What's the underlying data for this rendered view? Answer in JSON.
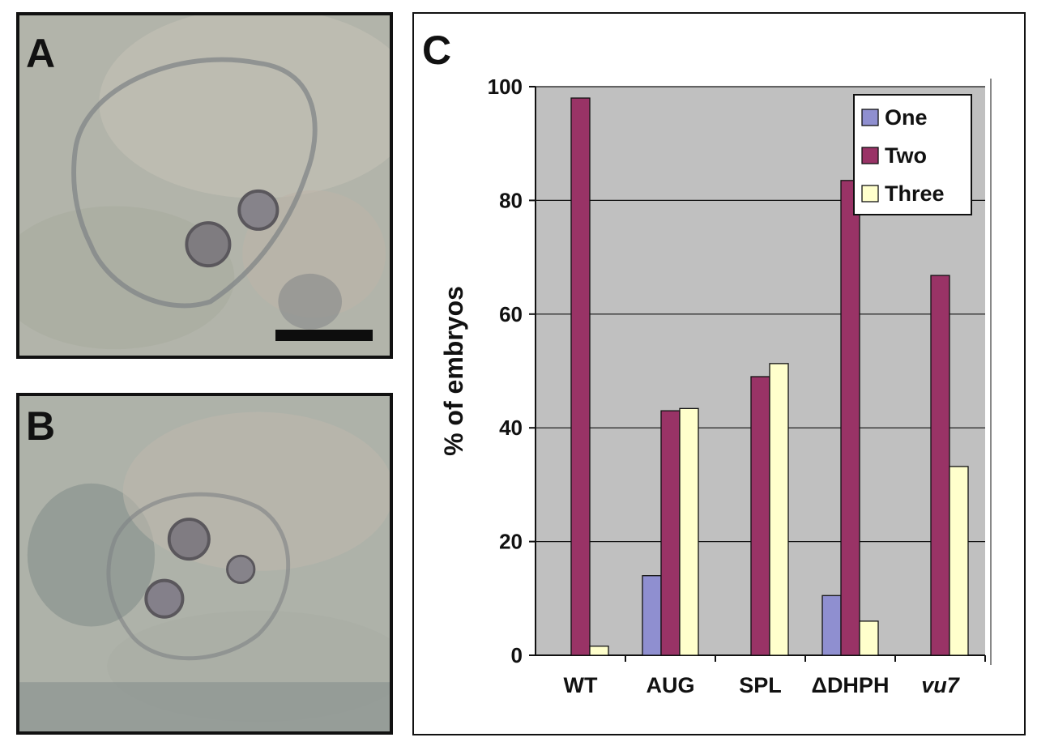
{
  "panels": {
    "a": {
      "label": "A"
    },
    "b": {
      "label": "B"
    },
    "c": {
      "label": "C"
    }
  },
  "colors": {
    "one": "#8f8fd0",
    "two": "#993366",
    "three": "#ffffcc",
    "plot_bg": "#c0c0c0",
    "gridline": "#111111"
  },
  "chart_data": {
    "type": "bar",
    "categories": [
      "WT",
      "AUG",
      "SPL",
      "ΔDHPH",
      "vu7"
    ],
    "italic_categories": [
      "vu7"
    ],
    "series": [
      {
        "name": "One",
        "values": [
          0,
          14,
          0,
          10.5,
          0
        ]
      },
      {
        "name": "Two",
        "values": [
          98,
          43,
          49,
          83.5,
          66.8
        ]
      },
      {
        "name": "Three",
        "values": [
          1.6,
          43.4,
          51.3,
          6,
          33.2
        ]
      }
    ],
    "ylabel": "% of embryos",
    "xlabel": "",
    "ylim": [
      0,
      100
    ],
    "yticks": [
      0,
      20,
      40,
      60,
      80,
      100
    ],
    "grid": true,
    "legend_position": "top-right"
  }
}
